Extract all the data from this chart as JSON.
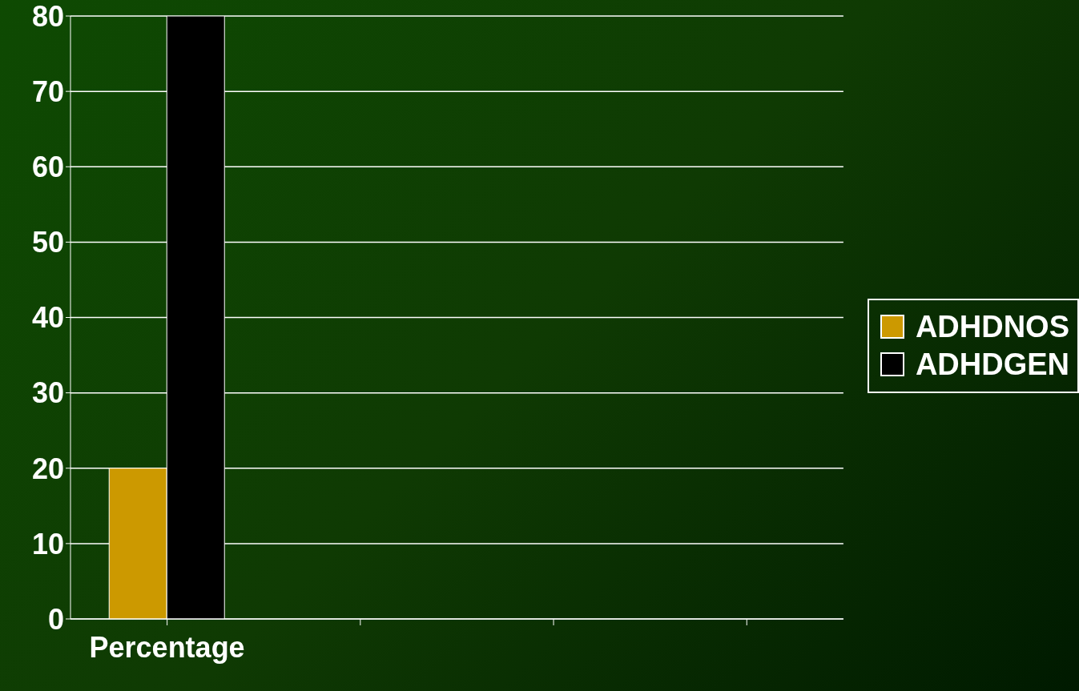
{
  "chart_data": {
    "type": "bar",
    "categories": [
      "Percentage",
      null,
      null,
      null
    ],
    "series": [
      {
        "name": "ADHDNOS",
        "color": "#cc9900",
        "values": [
          20,
          null,
          null,
          null
        ]
      },
      {
        "name": "ADHDGEN",
        "color": "#000000",
        "values": [
          80,
          null,
          null,
          null
        ]
      }
    ],
    "ylim": [
      0,
      80
    ],
    "yticks": [
      0,
      10,
      20,
      30,
      40,
      50,
      60,
      70,
      80
    ],
    "grid": "y",
    "legend": "right"
  }
}
